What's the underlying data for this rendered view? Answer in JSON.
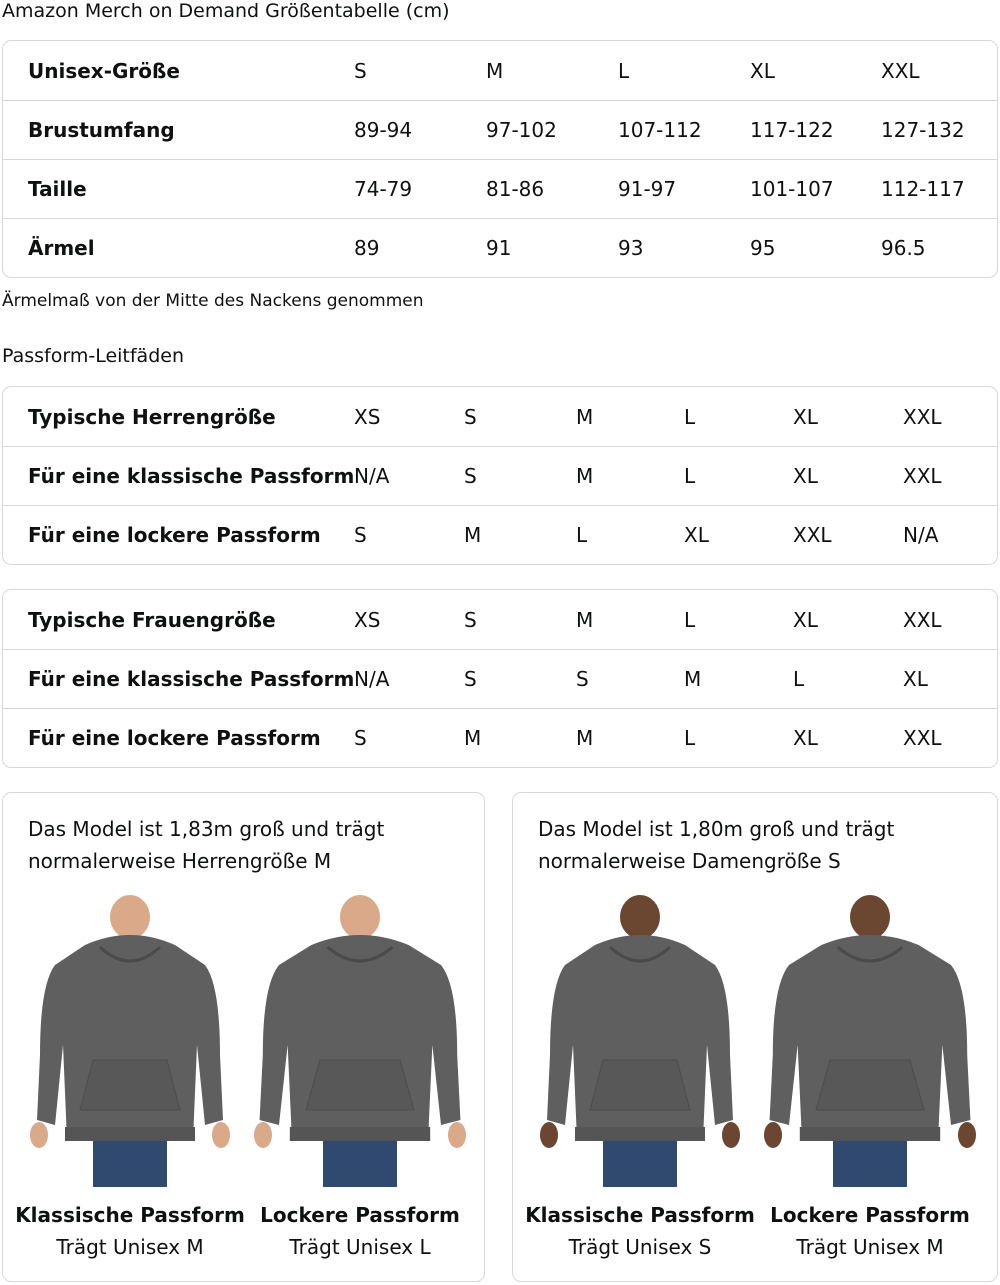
{
  "size_chart": {
    "title": "Amazon Merch on Demand Größentabelle (cm)",
    "rows": [
      [
        "Unisex-Größe",
        "S",
        "M",
        "L",
        "XL",
        "XXL"
      ],
      [
        "Brustumfang",
        "89-94",
        "97-102",
        "107-112",
        "117-122",
        "127-132"
      ],
      [
        "Taille",
        "74-79",
        "81-86",
        "91-97",
        "101-107",
        "112-117"
      ],
      [
        "Ärmel",
        "89",
        "91",
        "93",
        "95",
        "96.5"
      ]
    ],
    "note": "Ärmelmaß von der Mitte des Nackens genommen"
  },
  "fit_guides": {
    "title": "Passform-Leitfäden",
    "men": [
      [
        "Typische Herrengröße",
        "XS",
        "S",
        "M",
        "L",
        "XL",
        "XXL"
      ],
      [
        "Für eine klassische Passform",
        "N/A",
        "S",
        "M",
        "L",
        "XL",
        "XXL"
      ],
      [
        "Für eine lockere Passform",
        "S",
        "M",
        "L",
        "XL",
        "XXL",
        "N/A"
      ]
    ],
    "women": [
      [
        "Typische Frauengröße",
        "XS",
        "S",
        "M",
        "L",
        "XL",
        "XXL"
      ],
      [
        "Für eine klassische Passform",
        "N/A",
        "S",
        "S",
        "M",
        "L",
        "XL"
      ],
      [
        "Für eine lockere Passform",
        "S",
        "M",
        "M",
        "L",
        "XL",
        "XXL"
      ]
    ]
  },
  "models": [
    {
      "desc": [
        "Das Model ist 1,83m groß und trägt",
        "normalerweise Herrengröße M"
      ],
      "figures": [
        {
          "title": "Klassische Passform",
          "sub": "Trägt Unisex M"
        },
        {
          "title": "Lockere Passform",
          "sub": "Trägt Unisex L"
        }
      ]
    },
    {
      "desc": [
        "Das Model ist 1,80m groß und trägt",
        "normalerweise Damengröße S"
      ],
      "figures": [
        {
          "title": "Klassische Passform",
          "sub": "Trägt Unisex S"
        },
        {
          "title": "Lockere Passform",
          "sub": "Trägt Unisex M"
        }
      ]
    }
  ],
  "colors": {
    "border": "#d5d9d9",
    "hoodie": "#5f5f5f",
    "jeans": "#2f4a6e",
    "skin_light": "#d9a98a",
    "skin_dark": "#6b4630"
  }
}
